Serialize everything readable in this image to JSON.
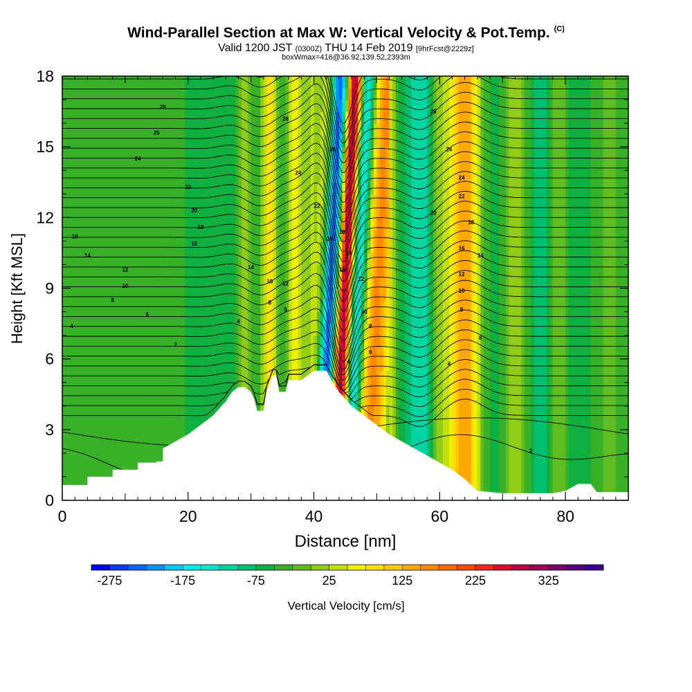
{
  "titles": {
    "main": "Wind-Parallel Section at Max W: Vertical Velocity & Pot.Temp.",
    "copyright": "(C)",
    "valid_prefix": "Valid 1200 JST",
    "valid_utc": "(0300Z)",
    "valid_date": "THU 14 Feb 2019",
    "forecast": "[9hrFcst@2229z]",
    "box": "boxWmax=416@36.92,139.52,2393m"
  },
  "chart_data": {
    "type": "heatmap",
    "xlabel": "Distance [nm]",
    "ylabel": "Height [Kft MSL]",
    "xlim": [
      0,
      90
    ],
    "ylim": [
      0,
      18
    ],
    "x_ticks": [
      "0",
      "20",
      "40",
      "60",
      "80"
    ],
    "x_tick_values": [
      0,
      20,
      40,
      60,
      80
    ],
    "y_ticks": [
      "0",
      "3",
      "6",
      "9",
      "12",
      "15",
      "18"
    ],
    "y_tick_values": [
      0,
      3,
      6,
      9,
      12,
      15,
      18
    ],
    "colorbar": {
      "label": "Vertical Velocity [cm/s]",
      "tick_labels": [
        "-275",
        "-175",
        "-75",
        "25",
        "125",
        "225",
        "325"
      ],
      "tick_values": [
        -275,
        -175,
        -75,
        25,
        125,
        225,
        325
      ],
      "range": [
        -300,
        400
      ],
      "step": 25,
      "colors": [
        "#0000ff",
        "#0a3cff",
        "#0064ff",
        "#0096ff",
        "#00c8ff",
        "#00ecf0",
        "#00e8c8",
        "#00d4a0",
        "#00c070",
        "#10b040",
        "#38b028",
        "#60bc20",
        "#90cc18",
        "#c0e010",
        "#eef000",
        "#ffe000",
        "#ffc800",
        "#ffa800",
        "#ff8800",
        "#ff6a00",
        "#ff4800",
        "#f02818",
        "#d81028",
        "#b80040",
        "#9c0058",
        "#780070",
        "#580080",
        "#3c0090"
      ]
    },
    "vertical_velocity_bands": [
      {
        "x": 0,
        "w": -35,
        "width": 10
      },
      {
        "x": 12,
        "w": -40,
        "width": 4
      },
      {
        "x": 22,
        "w": -60,
        "width": 2.5
      },
      {
        "x": 27,
        "w": -85,
        "width": 1.5
      },
      {
        "x": 29,
        "w": 20,
        "width": 1.5
      },
      {
        "x": 31,
        "w": -70,
        "width": 1.2
      },
      {
        "x": 33,
        "w": 100,
        "width": 1.5
      },
      {
        "x": 35,
        "w": -90,
        "width": 1.2
      },
      {
        "x": 37,
        "w": 80,
        "width": 1.5
      },
      {
        "x": 38.5,
        "w": -50,
        "width": 1.5
      },
      {
        "x": 40.5,
        "w": 60,
        "width": 1.5
      },
      {
        "x": 42.5,
        "w": -290,
        "width": 1.4
      },
      {
        "x": 44.8,
        "w": 380,
        "width": 1.3
      },
      {
        "x": 46.8,
        "w": -210,
        "width": 1.6
      },
      {
        "x": 49,
        "w": 110,
        "width": 1.5
      },
      {
        "x": 51,
        "w": 130,
        "width": 1.8
      },
      {
        "x": 53.5,
        "w": -60,
        "width": 2
      },
      {
        "x": 57,
        "w": -120,
        "width": 2.5
      },
      {
        "x": 60,
        "w": 20,
        "width": 1.5
      },
      {
        "x": 64,
        "w": 170,
        "width": 2.5
      },
      {
        "x": 68,
        "w": -70,
        "width": 2.5
      },
      {
        "x": 72,
        "w": 20,
        "width": 2
      },
      {
        "x": 76,
        "w": -95,
        "width": 2
      },
      {
        "x": 79,
        "w": 10,
        "width": 1.5
      },
      {
        "x": 82,
        "w": -80,
        "width": 2
      },
      {
        "x": 87,
        "w": -20,
        "width": 3
      }
    ],
    "terrain": [
      [
        0,
        0.65
      ],
      [
        4,
        0.65
      ],
      [
        4,
        1.0
      ],
      [
        8,
        1.0
      ],
      [
        8,
        1.3
      ],
      [
        12,
        1.3
      ],
      [
        12,
        1.6
      ],
      [
        15,
        1.6
      ],
      [
        15,
        1.65
      ],
      [
        16,
        1.65
      ],
      [
        16,
        2.2
      ],
      [
        18,
        2.5
      ],
      [
        20,
        2.8
      ],
      [
        22,
        3.2
      ],
      [
        24,
        3.6
      ],
      [
        26,
        4.2
      ],
      [
        27,
        4.6
      ],
      [
        28,
        4.8
      ],
      [
        29,
        4.8
      ],
      [
        30,
        4.6
      ],
      [
        30.5,
        4.3
      ],
      [
        31,
        3.8
      ],
      [
        32,
        3.8
      ],
      [
        32.5,
        4.6
      ],
      [
        33.5,
        5.3
      ],
      [
        34,
        5.3
      ],
      [
        34.5,
        4.6
      ],
      [
        35.5,
        4.6
      ],
      [
        36,
        5.1
      ],
      [
        38,
        5.1
      ],
      [
        39,
        5.3
      ],
      [
        40,
        5.5
      ],
      [
        42,
        5.5
      ],
      [
        43,
        5.0
      ],
      [
        44,
        4.6
      ],
      [
        45,
        4.3
      ],
      [
        46,
        4.0
      ],
      [
        48,
        3.6
      ],
      [
        50,
        3.2
      ],
      [
        52,
        2.8
      ],
      [
        54,
        2.5
      ],
      [
        56,
        2.2
      ],
      [
        58,
        1.9
      ],
      [
        60,
        1.6
      ],
      [
        62,
        1.3
      ],
      [
        64,
        0.9
      ],
      [
        66,
        0.4
      ],
      [
        70,
        0.3
      ],
      [
        74,
        0.3
      ],
      [
        78,
        0.3
      ],
      [
        80,
        0.4
      ],
      [
        82,
        0.7
      ],
      [
        84,
        0.7
      ],
      [
        85,
        0.35
      ],
      [
        90,
        0.35
      ]
    ],
    "theta_contour_labels": [
      {
        "text": "28",
        "x": 16,
        "y": 16.7
      },
      {
        "text": "26",
        "x": 15,
        "y": 15.6
      },
      {
        "text": "24",
        "x": 12,
        "y": 14.5
      },
      {
        "text": "22",
        "x": 20,
        "y": 13.3
      },
      {
        "text": "20",
        "x": 21,
        "y": 12.3
      },
      {
        "text": "18",
        "x": 22,
        "y": 11.6
      },
      {
        "text": "16",
        "x": 21,
        "y": 10.9
      },
      {
        "text": "18",
        "x": 2,
        "y": 11.2
      },
      {
        "text": "14",
        "x": 4,
        "y": 10.4
      },
      {
        "text": "12",
        "x": 10,
        "y": 9.8
      },
      {
        "text": "10",
        "x": 10,
        "y": 9.1
      },
      {
        "text": "8",
        "x": 8,
        "y": 8.5
      },
      {
        "text": "6",
        "x": 13.5,
        "y": 7.9
      },
      {
        "text": "4",
        "x": 1.5,
        "y": 7.4
      },
      {
        "text": "2",
        "x": 18,
        "y": 6.6
      },
      {
        "text": "28",
        "x": 35.5,
        "y": 16.2
      },
      {
        "text": "24",
        "x": 37.5,
        "y": 13.9
      },
      {
        "text": "22",
        "x": 40.5,
        "y": 12.5
      },
      {
        "text": "20",
        "x": 42.5,
        "y": 11.1
      },
      {
        "text": "18",
        "x": 44.5,
        "y": 11.4
      },
      {
        "text": "14",
        "x": 45.5,
        "y": 10.5
      },
      {
        "text": "16",
        "x": 44.5,
        "y": 9.8
      },
      {
        "text": "12",
        "x": 47.5,
        "y": 9.4
      },
      {
        "text": "10",
        "x": 48,
        "y": 8.0
      },
      {
        "text": "8",
        "x": 49,
        "y": 7.4
      },
      {
        "text": "6",
        "x": 49,
        "y": 6.3
      },
      {
        "text": "4",
        "x": 45.5,
        "y": 5.9
      },
      {
        "text": "26",
        "x": 43,
        "y": 14.9
      },
      {
        "text": "14",
        "x": 30,
        "y": 9.9
      },
      {
        "text": "10",
        "x": 33,
        "y": 9.3
      },
      {
        "text": "12",
        "x": 35.5,
        "y": 9.2
      },
      {
        "text": "8",
        "x": 33,
        "y": 8.4
      },
      {
        "text": "6",
        "x": 35.5,
        "y": 8.1
      },
      {
        "text": "4",
        "x": 28,
        "y": 7.6
      },
      {
        "text": "28",
        "x": 59,
        "y": 16.5
      },
      {
        "text": "26",
        "x": 61.5,
        "y": 14.9
      },
      {
        "text": "24",
        "x": 63.5,
        "y": 13.7
      },
      {
        "text": "22",
        "x": 63.5,
        "y": 12.9
      },
      {
        "text": "20",
        "x": 59,
        "y": 12.2
      },
      {
        "text": "18",
        "x": 65,
        "y": 11.8
      },
      {
        "text": "16",
        "x": 63.5,
        "y": 10.7
      },
      {
        "text": "14",
        "x": 66.5,
        "y": 10.4
      },
      {
        "text": "12",
        "x": 63.5,
        "y": 9.6
      },
      {
        "text": "10",
        "x": 63.5,
        "y": 8.9
      },
      {
        "text": "8",
        "x": 63.5,
        "y": 8.1
      },
      {
        "text": "6",
        "x": 66.5,
        "y": 6.9
      },
      {
        "text": "4",
        "x": 61.5,
        "y": 5.8
      },
      {
        "text": "2",
        "x": 74.5,
        "y": 2.1
      }
    ],
    "theta_levels": [
      2,
      4,
      6,
      8,
      10,
      12,
      14,
      16,
      18,
      20,
      22,
      24,
      26,
      28
    ]
  }
}
